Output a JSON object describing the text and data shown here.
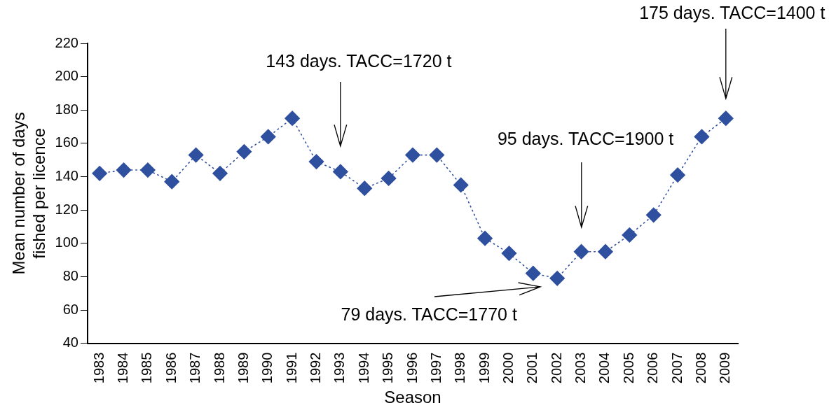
{
  "chart_data": {
    "type": "line",
    "xlabel": "Season",
    "ylabel": "Mean number of days fished per licence",
    "categories": [
      "1983",
      "1984",
      "1985",
      "1986",
      "1987",
      "1988",
      "1989",
      "1990",
      "1991",
      "1992",
      "1993",
      "1994",
      "1995",
      "1996",
      "1997",
      "1998",
      "1999",
      "2000",
      "2001",
      "2002",
      "2003",
      "2004",
      "2005",
      "2006",
      "2007",
      "2008",
      "2009"
    ],
    "series": [
      {
        "color": "#2f4f9f",
        "values": [
          142,
          144,
          144,
          137,
          153,
          142,
          155,
          164,
          175,
          149,
          143,
          133,
          139,
          153,
          153,
          135,
          103,
          94,
          82,
          79,
          95,
          95,
          105,
          117,
          141,
          164,
          175
        ]
      }
    ],
    "ylim": [
      40,
      220
    ],
    "yticks": [
      40,
      60,
      80,
      100,
      120,
      140,
      160,
      180,
      200,
      220
    ],
    "grid": false,
    "legend": false,
    "marker": "diamond",
    "line_style": "dotted",
    "annotations": [
      "143 days. TACC=1720 t",
      "79 days. TACC=1770 t",
      "95 days. TACC=1900 t",
      "175 days. TACC=1400 t"
    ]
  }
}
